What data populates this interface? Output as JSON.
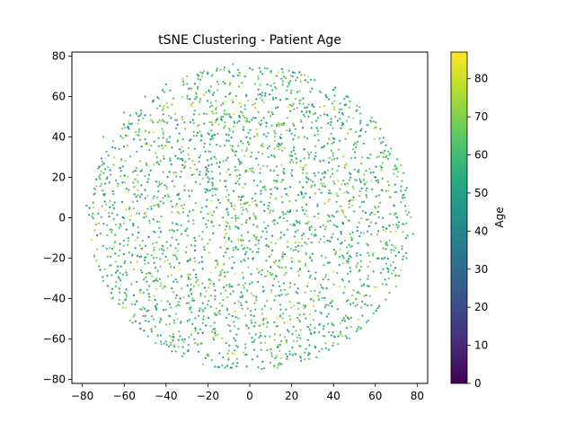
{
  "chart_data": {
    "type": "scatter",
    "title": "tSNE Clustering - Patient Age",
    "xlabel": "",
    "ylabel": "",
    "xlim": [
      -85,
      85
    ],
    "ylim": [
      -82,
      82
    ],
    "x_ticks": [
      -80,
      -60,
      -40,
      -20,
      0,
      20,
      40,
      60,
      80
    ],
    "y_ticks": [
      -80,
      -60,
      -40,
      -20,
      0,
      20,
      40,
      60,
      80
    ],
    "grid": false,
    "colormap": "viridis",
    "colorbar": {
      "label": "Age",
      "range": [
        0,
        87
      ],
      "ticks": [
        0,
        10,
        20,
        30,
        40,
        50,
        60,
        70,
        80
      ]
    },
    "point_cloud": {
      "description_units": "data",
      "center": [
        0,
        0
      ],
      "radius_x": 77,
      "radius_y": 76,
      "age_mean": 60,
      "age_sd": 10
    },
    "series": [
      {
        "name": "",
        "points": [
          [
            -78,
            6,
            55
          ],
          [
            -75,
            2,
            62
          ],
          [
            -72,
            -24,
            58
          ],
          [
            -70,
            40,
            66
          ],
          [
            -68,
            20,
            51
          ],
          [
            -66,
            -40,
            70
          ],
          [
            -60,
            52,
            63
          ],
          [
            -56,
            -52,
            57
          ],
          [
            -50,
            60,
            61
          ],
          [
            -45,
            -62,
            65
          ],
          [
            -40,
            66,
            54
          ],
          [
            -30,
            70,
            72
          ],
          [
            -20,
            72,
            58
          ],
          [
            -8,
            76,
            60
          ],
          [
            0,
            74,
            49
          ],
          [
            10,
            72,
            67
          ],
          [
            22,
            68,
            59
          ],
          [
            34,
            62,
            63
          ],
          [
            46,
            56,
            52
          ],
          [
            56,
            46,
            60
          ],
          [
            64,
            32,
            71
          ],
          [
            70,
            24,
            58
          ],
          [
            74,
            10,
            64
          ],
          [
            78,
            -8,
            55
          ],
          [
            75,
            -20,
            62
          ],
          [
            70,
            -34,
            68
          ],
          [
            62,
            -44,
            57
          ],
          [
            52,
            -54,
            60
          ],
          [
            40,
            -62,
            75
          ],
          [
            28,
            -68,
            58
          ],
          [
            14,
            -72,
            62
          ],
          [
            4,
            -74,
            56
          ],
          [
            -8,
            -72,
            64
          ],
          [
            -20,
            -68,
            60
          ],
          [
            -32,
            -64,
            53
          ],
          [
            -44,
            -58,
            66
          ],
          [
            -55,
            -48,
            59
          ],
          [
            -64,
            -34,
            61
          ],
          [
            -70,
            -14,
            57
          ],
          [
            -74,
            12,
            63
          ],
          [
            0,
            0,
            60
          ],
          [
            10,
            10,
            83
          ],
          [
            -10,
            -10,
            45
          ],
          [
            20,
            -20,
            70
          ],
          [
            -20,
            20,
            52
          ]
        ]
      }
    ]
  }
}
